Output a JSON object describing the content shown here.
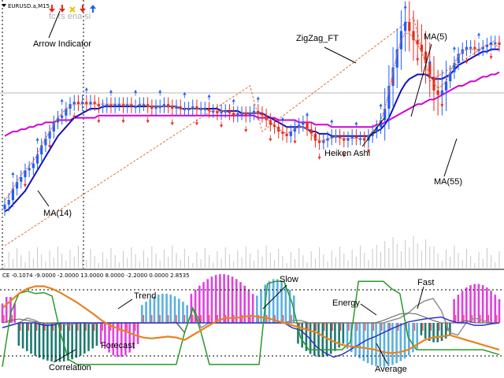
{
  "window": {
    "symbol_label": "EURUSD.a,M15",
    "faint_title": "fc rs ena si",
    "indicator_header": "CE -0.1074 -9.0000 -2.0000 13.0000 8.0000 -2.2000 0.0000 2.8535"
  },
  "colors": {
    "bull": "#1e5eff",
    "bear": "#e8281e",
    "ma_fast": "#1212b8",
    "ma_slow": "#d400d4",
    "zigzag": "#e07040",
    "magenta_hist": "#e040e0",
    "sky_hist": "#5ab0e0",
    "teal_hist": "#1b7a70",
    "red_band": "#ff5050",
    "fast_line": "#2a9a2a",
    "average_line": "#3030c8",
    "forecast_line": "#e8821e",
    "energy_line": "#909090"
  },
  "top_arrows": [
    "down-red",
    "down-red",
    "cross-yellow",
    "down-red",
    "up-blue"
  ],
  "chart_data": [
    {
      "type": "candlestick",
      "title": "EURUSD.a,M15",
      "annotations": [
        "Arrow Indicator",
        "ZigZag_FT",
        "MA(5)",
        "Heiken Ashi",
        "MA(14)",
        "MA(55)"
      ],
      "bars": 122,
      "close": [
        0.18,
        0.2,
        0.25,
        0.28,
        0.3,
        0.33,
        0.34,
        0.36,
        0.4,
        0.44,
        0.47,
        0.5,
        0.54,
        0.56,
        0.57,
        0.6,
        0.62,
        0.63,
        0.62,
        0.63,
        0.62,
        0.63,
        0.62,
        0.61,
        0.61,
        0.62,
        0.61,
        0.62,
        0.62,
        0.61,
        0.62,
        0.61,
        0.61,
        0.62,
        0.62,
        0.61,
        0.6,
        0.61,
        0.61,
        0.62,
        0.61,
        0.6,
        0.61,
        0.6,
        0.6,
        0.6,
        0.61,
        0.6,
        0.6,
        0.6,
        0.59,
        0.59,
        0.58,
        0.59,
        0.59,
        0.58,
        0.57,
        0.58,
        0.58,
        0.57,
        0.58,
        0.59,
        0.58,
        0.57,
        0.55,
        0.53,
        0.52,
        0.5,
        0.49,
        0.48,
        0.5,
        0.52,
        0.53,
        0.54,
        0.51,
        0.49,
        0.46,
        0.45,
        0.46,
        0.47,
        0.48,
        0.48,
        0.47,
        0.46,
        0.47,
        0.48,
        0.47,
        0.47,
        0.46,
        0.48,
        0.5,
        0.52,
        0.55,
        0.6,
        0.7,
        0.78,
        0.86,
        0.94,
        0.98,
        0.94,
        0.9,
        0.88,
        0.85,
        0.8,
        0.74,
        0.68,
        0.66,
        0.68,
        0.72,
        0.76,
        0.8,
        0.84,
        0.86,
        0.87,
        0.87,
        0.86,
        0.86,
        0.87,
        0.88,
        0.89,
        0.89,
        0.88
      ],
      "series": [
        {
          "name": "MA(5)",
          "values": [
            0.2,
            0.22,
            0.25,
            0.28,
            0.31,
            0.33,
            0.35,
            0.37,
            0.4,
            0.44,
            0.47,
            0.5,
            0.53,
            0.56,
            0.58,
            0.6,
            0.61,
            0.62,
            0.62,
            0.62,
            0.62,
            0.62,
            0.62,
            0.62,
            0.62,
            0.62,
            0.62,
            0.62,
            0.62,
            0.62,
            0.62,
            0.62,
            0.61,
            0.62,
            0.62,
            0.61,
            0.61,
            0.61,
            0.61,
            0.61,
            0.61,
            0.61,
            0.61,
            0.6,
            0.6,
            0.6,
            0.6,
            0.6,
            0.6,
            0.6,
            0.59,
            0.59,
            0.59,
            0.59,
            0.59,
            0.58,
            0.58,
            0.58,
            0.58,
            0.58,
            0.58,
            0.58,
            0.58,
            0.57,
            0.56,
            0.54,
            0.53,
            0.51,
            0.5,
            0.49,
            0.5,
            0.51,
            0.52,
            0.52,
            0.51,
            0.49,
            0.47,
            0.46,
            0.46,
            0.47,
            0.47,
            0.48,
            0.47,
            0.47,
            0.47,
            0.47,
            0.47,
            0.47,
            0.47,
            0.48,
            0.5,
            0.52,
            0.55,
            0.6,
            0.68,
            0.76,
            0.84,
            0.9,
            0.93,
            0.93,
            0.91,
            0.88,
            0.85,
            0.8,
            0.75,
            0.71,
            0.69,
            0.7,
            0.72,
            0.76,
            0.8,
            0.83,
            0.85,
            0.86,
            0.86,
            0.86,
            0.86,
            0.87,
            0.88,
            0.88,
            0.88,
            0.87
          ]
        },
        {
          "name": "MA(14)",
          "values": [
            0.15,
            0.16,
            0.18,
            0.2,
            0.22,
            0.24,
            0.27,
            0.3,
            0.33,
            0.36,
            0.39,
            0.42,
            0.45,
            0.48,
            0.5,
            0.52,
            0.54,
            0.56,
            0.57,
            0.58,
            0.59,
            0.6,
            0.6,
            0.6,
            0.61,
            0.61,
            0.61,
            0.61,
            0.61,
            0.61,
            0.61,
            0.61,
            0.61,
            0.61,
            0.61,
            0.61,
            0.61,
            0.61,
            0.61,
            0.61,
            0.61,
            0.61,
            0.61,
            0.6,
            0.6,
            0.6,
            0.6,
            0.6,
            0.6,
            0.6,
            0.6,
            0.6,
            0.6,
            0.59,
            0.59,
            0.59,
            0.59,
            0.59,
            0.58,
            0.58,
            0.58,
            0.58,
            0.58,
            0.58,
            0.57,
            0.56,
            0.55,
            0.54,
            0.53,
            0.52,
            0.52,
            0.52,
            0.52,
            0.52,
            0.51,
            0.5,
            0.5,
            0.49,
            0.49,
            0.49,
            0.48,
            0.48,
            0.48,
            0.48,
            0.48,
            0.48,
            0.48,
            0.48,
            0.48,
            0.48,
            0.49,
            0.5,
            0.51,
            0.53,
            0.56,
            0.6,
            0.64,
            0.68,
            0.71,
            0.73,
            0.74,
            0.75,
            0.75,
            0.75,
            0.74,
            0.73,
            0.73,
            0.73,
            0.74,
            0.75,
            0.77,
            0.79,
            0.8,
            0.81,
            0.82,
            0.83,
            0.84,
            0.85,
            0.85,
            0.86,
            0.86,
            0.86
          ]
        },
        {
          "name": "MA(55)",
          "values": [
            0.48,
            0.49,
            0.5,
            0.5,
            0.51,
            0.51,
            0.52,
            0.52,
            0.53,
            0.53,
            0.54,
            0.54,
            0.54,
            0.55,
            0.55,
            0.55,
            0.55,
            0.56,
            0.56,
            0.56,
            0.56,
            0.56,
            0.56,
            0.57,
            0.57,
            0.57,
            0.57,
            0.57,
            0.57,
            0.57,
            0.57,
            0.57,
            0.57,
            0.57,
            0.57,
            0.57,
            0.57,
            0.57,
            0.57,
            0.57,
            0.57,
            0.57,
            0.57,
            0.57,
            0.57,
            0.57,
            0.57,
            0.57,
            0.57,
            0.57,
            0.57,
            0.57,
            0.57,
            0.57,
            0.57,
            0.57,
            0.57,
            0.57,
            0.57,
            0.57,
            0.57,
            0.57,
            0.56,
            0.56,
            0.56,
            0.56,
            0.56,
            0.55,
            0.55,
            0.55,
            0.55,
            0.55,
            0.54,
            0.54,
            0.54,
            0.54,
            0.53,
            0.53,
            0.53,
            0.53,
            0.52,
            0.52,
            0.52,
            0.52,
            0.52,
            0.52,
            0.52,
            0.52,
            0.52,
            0.52,
            0.52,
            0.53,
            0.53,
            0.54,
            0.55,
            0.56,
            0.57,
            0.58,
            0.59,
            0.6,
            0.61,
            0.62,
            0.62,
            0.63,
            0.64,
            0.64,
            0.65,
            0.66,
            0.67,
            0.68,
            0.69,
            0.7,
            0.7,
            0.71,
            0.72,
            0.72,
            0.73,
            0.74,
            0.74,
            0.75,
            0.75,
            0.76
          ]
        }
      ],
      "zigzag": [
        [
          0,
          0.0
        ],
        [
          60,
          0.7
        ],
        [
          63,
          0.5
        ],
        [
          100,
          1.0
        ],
        [
          104,
          0.72
        ],
        [
          120,
          0.9
        ]
      ]
    },
    {
      "type": "histogram",
      "title": "CE -0.1074 -9.0000 -2.0000 13.0000 8.0000 -2.2000 0.0000 2.8535",
      "annotations": [
        "Slow",
        "Fast",
        "Trend",
        "Energy",
        "Forecast",
        "Correlation",
        "Average"
      ],
      "segments": [
        {
          "from": 0,
          "to": 4,
          "sign": 1,
          "color": "magenta",
          "amp": 0.55
        },
        {
          "from": 4,
          "to": 24,
          "sign": -1,
          "color": "teal",
          "amp": 0.8
        },
        {
          "from": 24,
          "to": 34,
          "sign": -1,
          "color": "magenta",
          "amp": 0.7
        },
        {
          "from": 34,
          "to": 46,
          "sign": 1,
          "color": "sky",
          "amp": 0.6
        },
        {
          "from": 46,
          "to": 62,
          "sign": 1,
          "color": "magenta",
          "amp": 1.0
        },
        {
          "from": 62,
          "to": 72,
          "sign": 1,
          "color": "sky",
          "amp": 0.9
        },
        {
          "from": 72,
          "to": 84,
          "sign": -1,
          "color": "teal",
          "amp": 0.7
        },
        {
          "from": 84,
          "to": 102,
          "sign": -1,
          "color": "sky",
          "amp": 0.9
        },
        {
          "from": 102,
          "to": 110,
          "sign": -1,
          "color": "teal",
          "amp": 0.4
        },
        {
          "from": 110,
          "to": 122,
          "sign": 1,
          "color": "magenta",
          "amp": 0.8
        }
      ],
      "series": [
        {
          "name": "Forecast",
          "values": [
            0.3,
            0.45,
            0.6,
            0.7,
            0.75,
            0.75,
            0.7,
            0.62,
            0.52,
            0.42,
            0.3,
            0.18,
            0.05,
            -0.05,
            -0.12,
            -0.18,
            -0.25,
            -0.3,
            -0.32,
            -0.3,
            -0.28,
            -0.3,
            -0.35,
            -0.25,
            -0.15,
            -0.05,
            0.05,
            0.1,
            0.1,
            0.12,
            0.15,
            0.12,
            0.1,
            0.05,
            0.0,
            -0.05,
            -0.1,
            -0.15,
            -0.2,
            -0.3,
            -0.38,
            -0.45,
            -0.48,
            -0.5,
            -0.52,
            -0.55,
            -0.6,
            -0.62,
            -0.6,
            -0.55,
            -0.45,
            -0.35,
            -0.3,
            -0.28,
            -0.25,
            -0.3,
            -0.35,
            -0.4,
            -0.45,
            -0.5,
            -0.55
          ]
        },
        {
          "name": "Fast",
          "values": [
            -0.9,
            0.2,
            0.6,
            0.65,
            0.6,
            0.62,
            0.55,
            -0.2,
            -0.75,
            -0.85,
            -0.85,
            -0.85,
            -0.85,
            -0.85,
            -0.85,
            -0.85,
            -0.85,
            -0.85,
            -0.85,
            -0.85,
            -0.85,
            -0.85,
            -0.2,
            0.3,
            -0.2,
            -0.85,
            -0.85,
            -0.85,
            -0.85,
            -0.85,
            -0.85,
            -0.85,
            0.8,
            0.85,
            0.85,
            0.4,
            -0.3,
            -0.55,
            -0.55,
            -0.55,
            -0.55,
            -0.55,
            -0.4,
            0.85,
            0.85,
            0.85,
            0.85,
            0.7,
            0.6,
            -0.3,
            -0.55,
            -0.55,
            -0.55,
            -0.55,
            -0.55,
            -0.55,
            -0.55,
            -0.55,
            -0.55,
            -0.6,
            -0.65
          ]
        },
        {
          "name": "Average",
          "values": [
            -0.1,
            -0.05,
            0.0,
            0.0,
            0.0,
            -0.05,
            -0.05,
            0.0,
            0.0,
            0.0,
            0.0,
            0.0,
            0.0,
            0.0,
            0.0,
            0.0,
            0.0,
            0.0,
            0.0,
            0.0,
            0.0,
            0.0,
            0.0,
            0.0,
            0.0,
            0.0,
            0.0,
            0.0,
            0.0,
            0.0,
            0.0,
            0.0,
            0.0,
            0.0,
            0.0,
            -0.1,
            -0.15,
            -0.3,
            -0.5,
            -0.62,
            -0.7,
            -0.65,
            -0.55,
            -0.45,
            -0.35,
            -0.28,
            -0.2,
            -0.12,
            -0.05,
            0.02,
            0.05,
            0.08,
            0.1,
            0.12,
            0.05,
            0.0,
            0.0,
            -0.05,
            -0.05,
            -0.02,
            0.0
          ]
        },
        {
          "name": "Energy",
          "values": [
            -0.1,
            -0.05,
            0.0,
            0.1,
            0.05,
            -0.05,
            0.0,
            0.0,
            -0.05,
            0.0,
            0.0,
            -0.02,
            0.0,
            0.0,
            0.0,
            0.0,
            0.0,
            0.0,
            0.0,
            0.0,
            0.0,
            0.02,
            -0.2,
            0.3,
            -0.1,
            0.0,
            0.0,
            0.0,
            0.0,
            0.0,
            0.0,
            0.0,
            0.0,
            0.0,
            0.0,
            0.05,
            0.05,
            0.0,
            0.0,
            0.0,
            0.0,
            0.0,
            0.0,
            0.0,
            0.0,
            0.0,
            0.0,
            0.05,
            0.1,
            0.2,
            0.35,
            0.45,
            0.5,
            0.25,
            -0.2,
            -0.25,
            0.0,
            0.1,
            0.05,
            0.0,
            0.0
          ]
        },
        {
          "name": "Trend",
          "values": [
            0.0,
            0.05,
            0.08,
            0.05,
            0.02,
            0.0,
            0.0,
            0.0,
            0.0,
            0.0,
            0.0,
            0.0,
            0.0,
            0.0,
            0.0,
            0.0,
            0.0,
            0.0,
            0.0,
            0.0,
            0.0,
            0.0,
            -0.2,
            0.3,
            0.0,
            0.0,
            0.0,
            0.0,
            0.0,
            0.0,
            0.0,
            0.0,
            0.0,
            0.0,
            0.0,
            0.0,
            0.0,
            0.0,
            0.0,
            0.0,
            0.0,
            0.0,
            0.0,
            0.0,
            0.0,
            0.0,
            0.05,
            0.12,
            0.18,
            0.2,
            0.18,
            0.12,
            0.05,
            0.0,
            0.0,
            0.0,
            0.05,
            0.0,
            0.0,
            0.0,
            0.0
          ]
        }
      ]
    }
  ]
}
